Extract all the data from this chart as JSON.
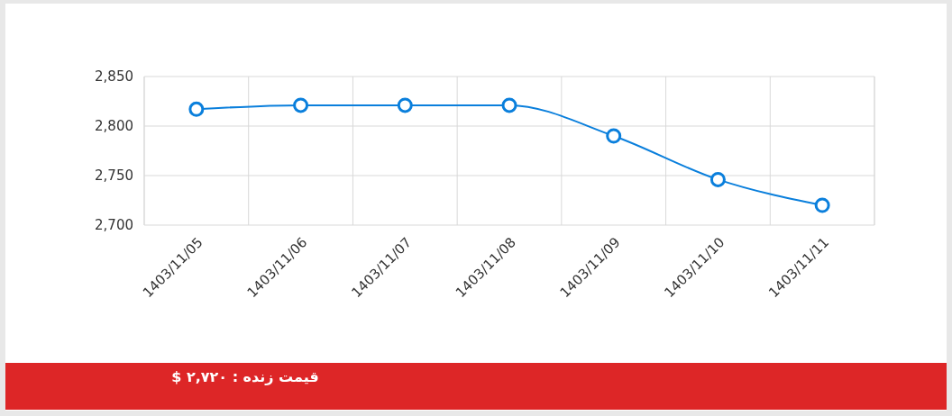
{
  "chart_data": {
    "type": "line",
    "categories": [
      "1403/11/05",
      "1403/11/06",
      "1403/11/07",
      "1403/11/08",
      "1403/11/09",
      "1403/11/10",
      "1403/11/11"
    ],
    "series": [
      {
        "color": "#0a7fdc",
        "values": [
          2817,
          2821,
          2821,
          2821,
          2790,
          2746,
          2720
        ]
      }
    ],
    "ylim": [
      2700,
      2850
    ],
    "yticks": [
      {
        "value": 2700,
        "label": "2,700"
      },
      {
        "value": 2750,
        "label": "2,750"
      },
      {
        "value": 2800,
        "label": "2,800"
      },
      {
        "value": 2850,
        "label": "2,850"
      }
    ],
    "grid": true,
    "marker": "circle",
    "annotations": [
      "قیمت زنده : ۲,۷۲۰ $"
    ]
  }
}
